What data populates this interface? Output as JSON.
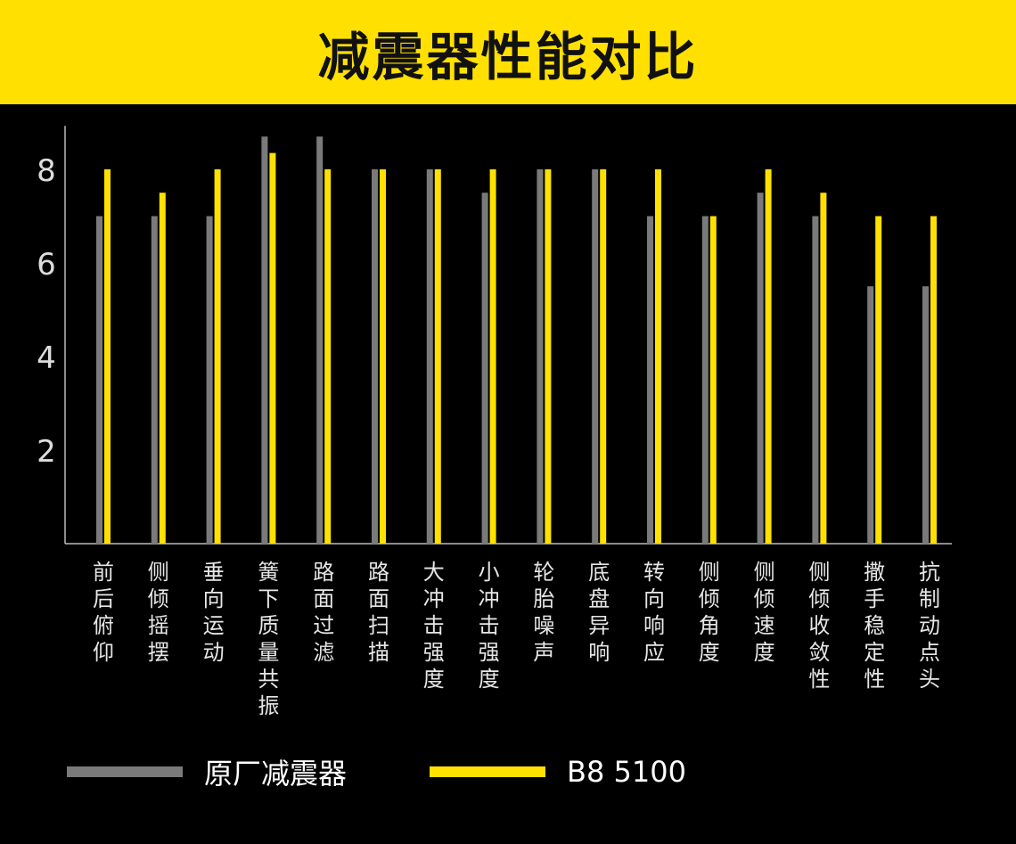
{
  "title": "减震器性能对比",
  "colors": {
    "header_bg": "#FFE000",
    "background": "#000000",
    "series_original": "#7A7A7A",
    "series_b8": "#FFE000",
    "axis": "#BBBBBB",
    "text": "#FFFFFF"
  },
  "chart_data": {
    "type": "bar",
    "title": "减震器性能对比",
    "xlabel": "",
    "ylabel": "",
    "ylim": [
      0,
      8.7
    ],
    "yticks": [
      2,
      4,
      6,
      8
    ],
    "grid": false,
    "legend_position": "bottom",
    "categories": [
      "前后俯仰",
      "侧倾摇摆",
      "垂向运动",
      "簧下质量共振",
      "路面过滤",
      "路面扫描",
      "大冲击强度",
      "小冲击强度",
      "轮胎噪声",
      "底盘异响",
      "转向响应",
      "侧倾角度",
      "侧倾速度",
      "侧倾收敛性",
      "撒手稳定性",
      "抗制动点头"
    ],
    "series": [
      {
        "name": "原厂减震器",
        "color": "#7A7A7A",
        "values": [
          7,
          7,
          7,
          8.7,
          8.7,
          8,
          8,
          7.5,
          8,
          8,
          7,
          7,
          7.5,
          7,
          5.5,
          5.5
        ]
      },
      {
        "name": "B8 5100",
        "color": "#FFE000",
        "values": [
          8,
          7.5,
          8,
          8.35,
          8,
          8,
          8,
          8,
          8,
          8,
          8,
          7,
          8,
          7.5,
          7,
          7
        ]
      }
    ]
  },
  "legend": {
    "items": [
      {
        "label": "原厂减震器",
        "color": "#7A7A7A"
      },
      {
        "label": "B8 5100",
        "color": "#FFE000"
      }
    ]
  }
}
